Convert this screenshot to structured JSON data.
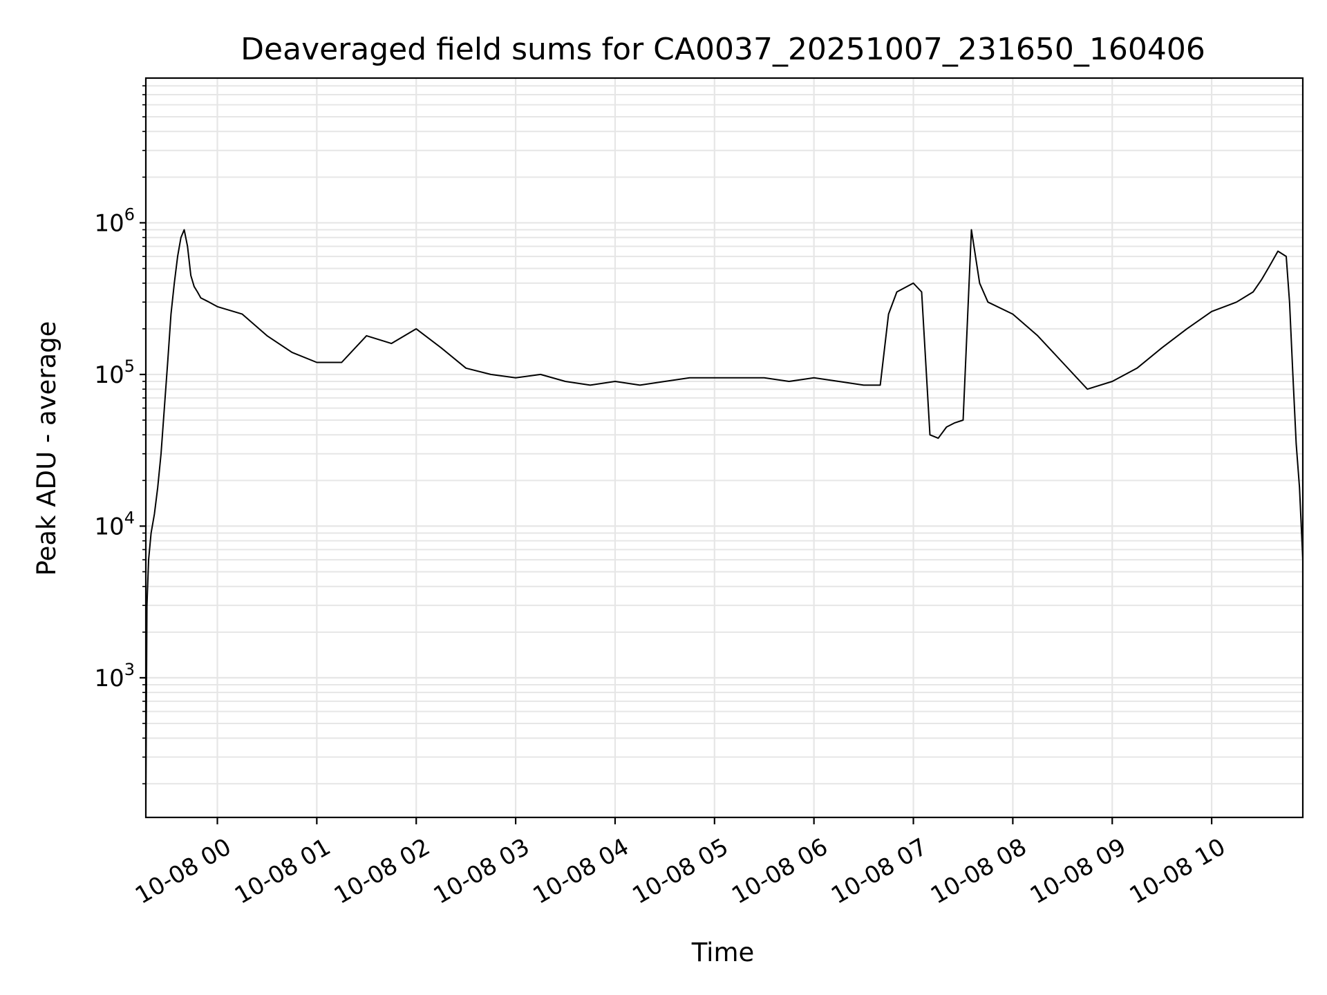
{
  "chart_data": {
    "type": "line",
    "title": "Deaveraged field sums for CA0037_20251007_231650_160406",
    "xlabel": "Time",
    "ylabel": "Peak ADU - average",
    "y_scale": "log",
    "ylim": [
      120,
      9000000
    ],
    "xlim": [
      "2025-10-07 23:16:50",
      "2025-10-08 10:55:00"
    ],
    "grid": true,
    "line_color": "#000000",
    "x_ticks": [
      {
        "t": "2025-10-08 00:00",
        "label": "10-08 00"
      },
      {
        "t": "2025-10-08 01:00",
        "label": "10-08 01"
      },
      {
        "t": "2025-10-08 02:00",
        "label": "10-08 02"
      },
      {
        "t": "2025-10-08 03:00",
        "label": "10-08 03"
      },
      {
        "t": "2025-10-08 04:00",
        "label": "10-08 04"
      },
      {
        "t": "2025-10-08 05:00",
        "label": "10-08 05"
      },
      {
        "t": "2025-10-08 06:00",
        "label": "10-08 06"
      },
      {
        "t": "2025-10-08 07:00",
        "label": "10-08 07"
      },
      {
        "t": "2025-10-08 08:00",
        "label": "10-08 08"
      },
      {
        "t": "2025-10-08 09:00",
        "label": "10-08 09"
      },
      {
        "t": "2025-10-08 10:00",
        "label": "10-08 10"
      }
    ],
    "y_ticks": [
      {
        "value": 1000,
        "base": "10",
        "exp": "3"
      },
      {
        "value": 10000,
        "base": "10",
        "exp": "4"
      },
      {
        "value": 100000,
        "base": "10",
        "exp": "5"
      },
      {
        "value": 1000000,
        "base": "10",
        "exp": "6"
      }
    ],
    "series": [
      {
        "x": [
          "2025-10-07 23:16:50",
          "2025-10-07 23:17:30",
          "2025-10-07 23:18:30",
          "2025-10-07 23:20:00",
          "2025-10-07 23:22:00",
          "2025-10-07 23:24:00",
          "2025-10-07 23:26:00",
          "2025-10-07 23:28:00",
          "2025-10-07 23:30:00",
          "2025-10-07 23:32:00",
          "2025-10-07 23:34:00",
          "2025-10-07 23:36:00",
          "2025-10-07 23:38:00",
          "2025-10-07 23:40:00",
          "2025-10-07 23:42:00",
          "2025-10-07 23:44:00",
          "2025-10-07 23:46:00",
          "2025-10-07 23:48:00",
          "2025-10-07 23:50:00",
          "2025-10-07 23:55:00",
          "2025-10-08 00:00:00",
          "2025-10-08 00:15:00",
          "2025-10-08 00:30:00",
          "2025-10-08 00:45:00",
          "2025-10-08 01:00:00",
          "2025-10-08 01:15:00",
          "2025-10-08 01:30:00",
          "2025-10-08 01:45:00",
          "2025-10-08 02:00:00",
          "2025-10-08 02:15:00",
          "2025-10-08 02:30:00",
          "2025-10-08 02:45:00",
          "2025-10-08 03:00:00",
          "2025-10-08 03:15:00",
          "2025-10-08 03:30:00",
          "2025-10-08 03:45:00",
          "2025-10-08 04:00:00",
          "2025-10-08 04:15:00",
          "2025-10-08 04:30:00",
          "2025-10-08 04:45:00",
          "2025-10-08 05:00:00",
          "2025-10-08 05:15:00",
          "2025-10-08 05:30:00",
          "2025-10-08 05:45:00",
          "2025-10-08 06:00:00",
          "2025-10-08 06:15:00",
          "2025-10-08 06:30:00",
          "2025-10-08 06:40:00",
          "2025-10-08 06:45:00",
          "2025-10-08 06:50:00",
          "2025-10-08 07:00:00",
          "2025-10-08 07:05:00",
          "2025-10-08 07:10:00",
          "2025-10-08 07:15:00",
          "2025-10-08 07:20:00",
          "2025-10-08 07:25:00",
          "2025-10-08 07:30:00",
          "2025-10-08 07:35:00",
          "2025-10-08 07:40:00",
          "2025-10-08 07:45:00",
          "2025-10-08 08:00:00",
          "2025-10-08 08:15:00",
          "2025-10-08 08:30:00",
          "2025-10-08 08:45:00",
          "2025-10-08 09:00:00",
          "2025-10-08 09:15:00",
          "2025-10-08 09:30:00",
          "2025-10-08 09:45:00",
          "2025-10-08 10:00:00",
          "2025-10-08 10:15:00",
          "2025-10-08 10:25:00",
          "2025-10-08 10:30:00",
          "2025-10-08 10:35:00",
          "2025-10-08 10:40:00",
          "2025-10-08 10:45:00",
          "2025-10-08 10:47:00",
          "2025-10-08 10:49:00",
          "2025-10-08 10:51:00",
          "2025-10-08 10:53:00",
          "2025-10-08 10:55:00"
        ],
        "y": [
          150,
          3000,
          6000,
          9000,
          12000,
          18000,
          30000,
          60000,
          120000,
          250000,
          400000,
          600000,
          800000,
          900000,
          700000,
          450000,
          380000,
          350000,
          320000,
          300000,
          280000,
          250000,
          180000,
          140000,
          120000,
          120000,
          180000,
          160000,
          200000,
          150000,
          110000,
          100000,
          95000,
          100000,
          90000,
          85000,
          90000,
          85000,
          90000,
          95000,
          95000,
          95000,
          95000,
          90000,
          95000,
          90000,
          85000,
          85000,
          250000,
          350000,
          400000,
          350000,
          40000,
          38000,
          45000,
          48000,
          50000,
          900000,
          400000,
          300000,
          250000,
          180000,
          120000,
          80000,
          90000,
          110000,
          150000,
          200000,
          260000,
          300000,
          350000,
          420000,
          520000,
          650000,
          600000,
          300000,
          100000,
          35000,
          18000,
          6000
        ]
      }
    ]
  }
}
